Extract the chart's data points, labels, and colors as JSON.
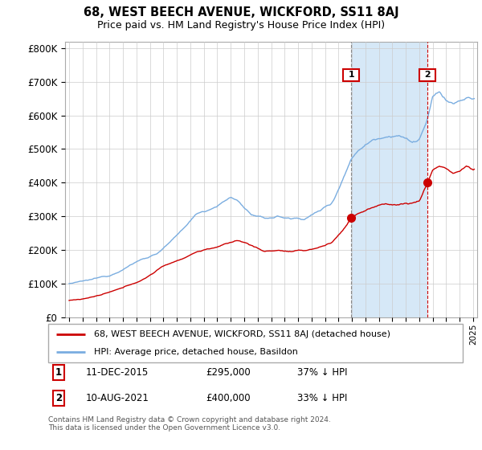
{
  "title": "68, WEST BEECH AVENUE, WICKFORD, SS11 8AJ",
  "subtitle": "Price paid vs. HM Land Registry's House Price Index (HPI)",
  "red_label": "68, WEST BEECH AVENUE, WICKFORD, SS11 8AJ (detached house)",
  "blue_label": "HPI: Average price, detached house, Basildon",
  "sale1_date": "11-DEC-2015",
  "sale1_price": 295000,
  "sale1_pct": "37% ↓ HPI",
  "sale1_year": 2015.95,
  "sale2_date": "10-AUG-2021",
  "sale2_price": 400000,
  "sale2_pct": "33% ↓ HPI",
  "sale2_year": 2021.62,
  "ylabel_ticks": [
    0,
    100000,
    200000,
    300000,
    400000,
    500000,
    600000,
    700000,
    800000
  ],
  "ylabel_labels": [
    "£0",
    "£100K",
    "£200K",
    "£300K",
    "£400K",
    "£500K",
    "£600K",
    "£700K",
    "£800K"
  ],
  "copyright_text": "Contains HM Land Registry data © Crown copyright and database right 2024.\nThis data is licensed under the Open Government Licence v3.0.",
  "red_color": "#cc0000",
  "blue_color": "#7aade0",
  "shade_color": "#d6e8f7",
  "vline1_color": "#888888",
  "vline2_color": "#cc0000",
  "grid_color": "#cccccc"
}
